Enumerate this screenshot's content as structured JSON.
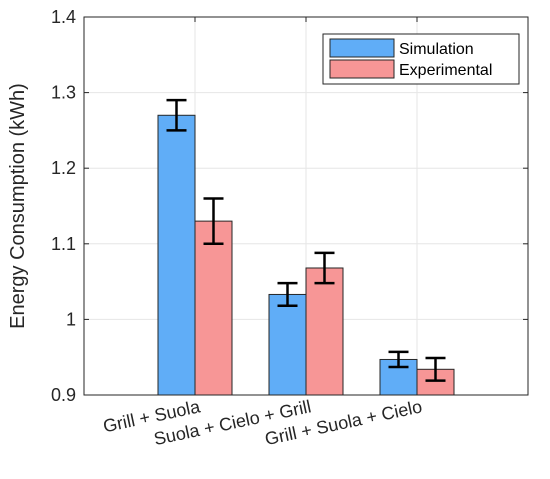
{
  "chart_data": {
    "type": "bar",
    "title": "",
    "xlabel": "",
    "ylabel": "Energy Consumption (kWh)",
    "ylim": [
      0.9,
      1.4
    ],
    "yticks": [
      0.9,
      1.0,
      1.1,
      1.2,
      1.3,
      1.4
    ],
    "ytick_labels": [
      "0.9",
      "1",
      "1.1",
      "1.2",
      "1.3",
      "1.4"
    ],
    "categories": [
      "Grill + Suola",
      "Suola + Cielo + Grill",
      "Grill + Suola + Cielo"
    ],
    "grid": true,
    "legend_position": "top-right",
    "series": [
      {
        "name": "Simulation",
        "color": "#60adf7",
        "values": [
          1.27,
          1.033,
          0.947
        ],
        "errors": [
          0.02,
          0.015,
          0.01
        ]
      },
      {
        "name": "Experimental",
        "color": "#f79696",
        "values": [
          1.13,
          1.068,
          0.934
        ],
        "errors": [
          0.03,
          0.02,
          0.015
        ]
      }
    ]
  }
}
